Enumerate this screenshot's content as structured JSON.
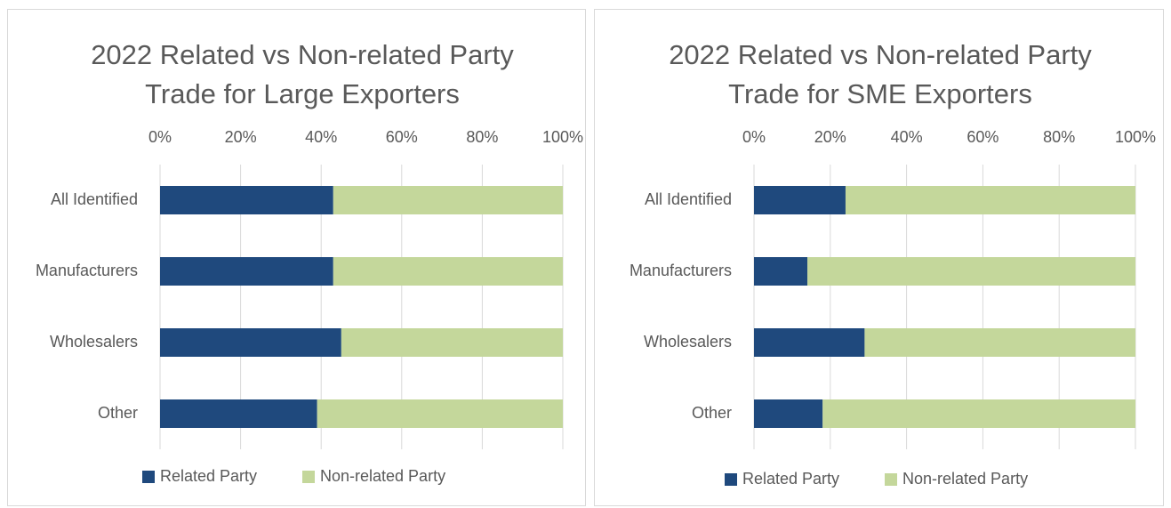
{
  "chart_data": [
    {
      "type": "bar",
      "stacked": true,
      "orientation": "horizontal",
      "title": "2022 Related vs Non-related Party Trade for Large Exporters",
      "categories": [
        "All Identified",
        "Manufacturers",
        "Wholesalers",
        "Other"
      ],
      "series": [
        {
          "name": "Related Party",
          "color": "#1f497d",
          "values": [
            43,
            43,
            45,
            39
          ]
        },
        {
          "name": "Non-related Party",
          "color": "#c4d79b",
          "values": [
            57,
            57,
            55,
            61
          ]
        }
      ],
      "xlim": [
        0,
        100
      ],
      "xticks": [
        {
          "value": 0,
          "label": "0%"
        },
        {
          "value": 20,
          "label": "20%"
        },
        {
          "value": 40,
          "label": "40%"
        },
        {
          "value": 60,
          "label": "60%"
        },
        {
          "value": 80,
          "label": "80%"
        },
        {
          "value": 100,
          "label": "100%"
        }
      ],
      "grid": true,
      "legend": "bottom"
    },
    {
      "type": "bar",
      "stacked": true,
      "orientation": "horizontal",
      "title": "2022 Related vs Non-related Party Trade for SME Exporters",
      "categories": [
        "All Identified",
        "Manufacturers",
        "Wholesalers",
        "Other"
      ],
      "series": [
        {
          "name": "Related Party",
          "color": "#1f497d",
          "values": [
            24,
            14,
            29,
            18
          ]
        },
        {
          "name": "Non-related Party",
          "color": "#c4d79b",
          "values": [
            76,
            86,
            71,
            82
          ]
        }
      ],
      "xlim": [
        0,
        100
      ],
      "xticks": [
        {
          "value": 0,
          "label": "0%"
        },
        {
          "value": 20,
          "label": "20%"
        },
        {
          "value": 40,
          "label": "40%"
        },
        {
          "value": 60,
          "label": "60%"
        },
        {
          "value": 80,
          "label": "80%"
        },
        {
          "value": 100,
          "label": "100%"
        }
      ],
      "grid": true,
      "legend": "bottom"
    }
  ]
}
